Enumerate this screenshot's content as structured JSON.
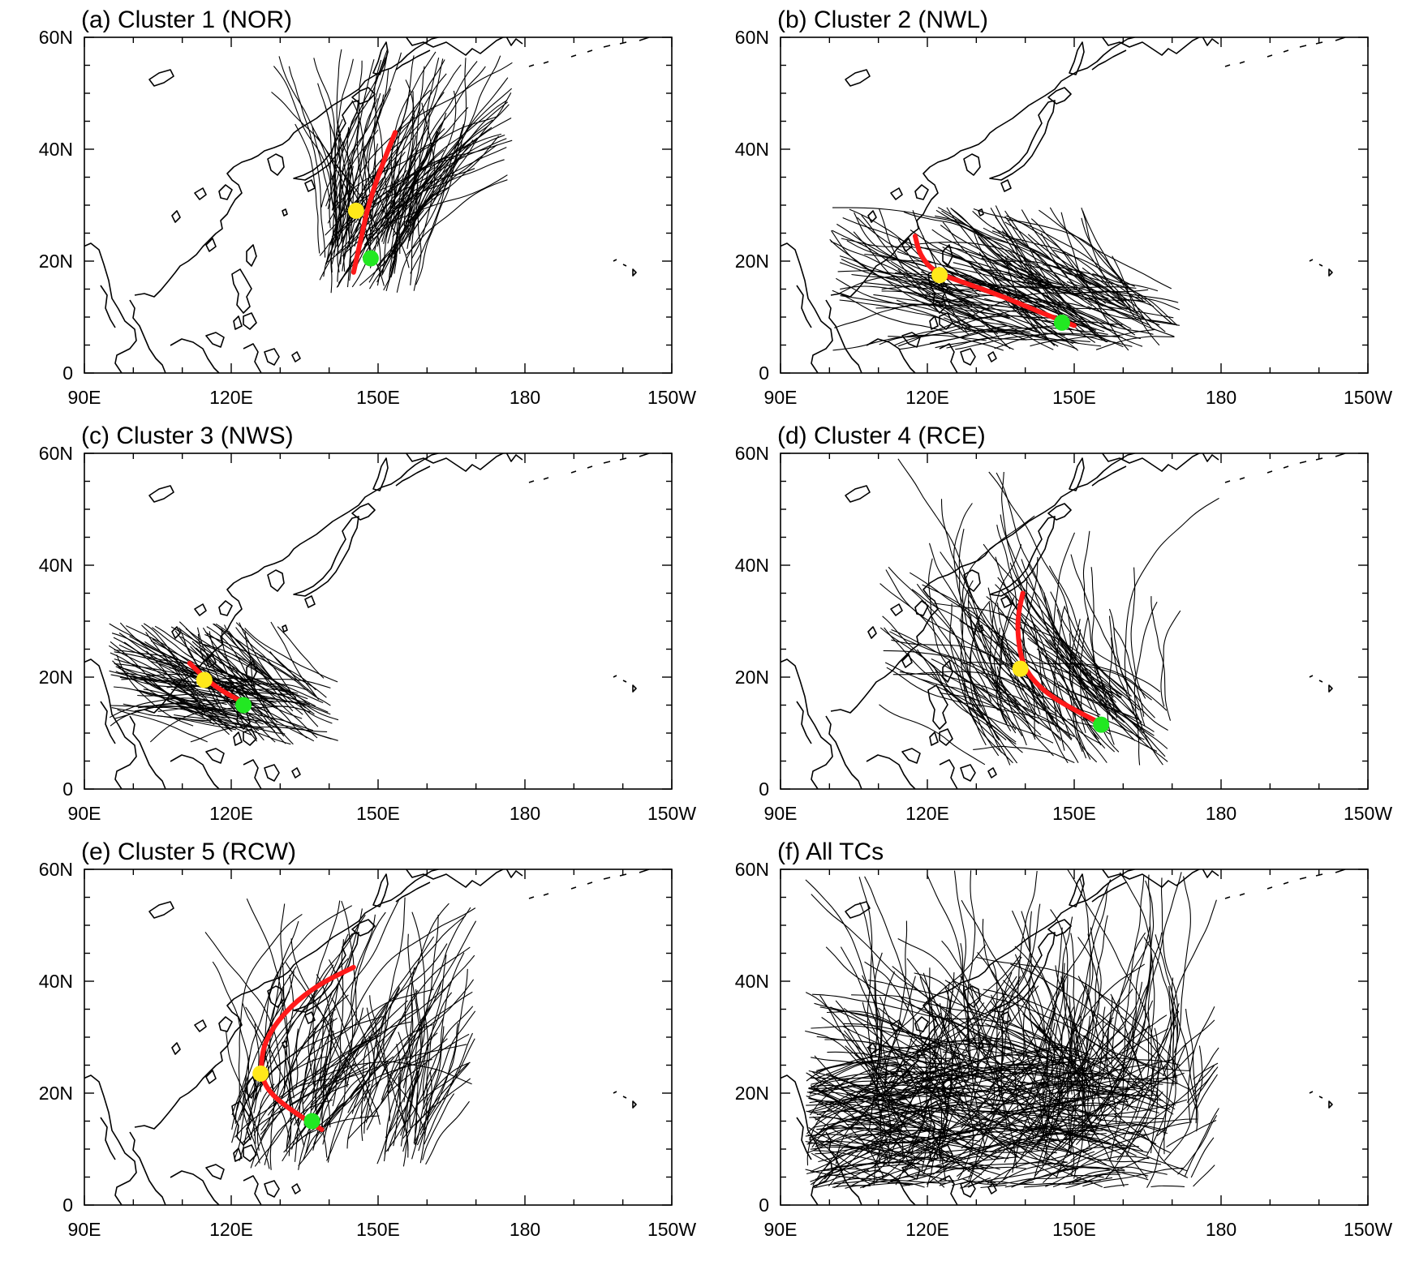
{
  "map": {
    "lon_range": [
      90,
      210
    ],
    "lat_range": [
      0,
      60
    ],
    "lon_ticks": [
      {
        "value": 90,
        "label": "90E"
      },
      {
        "value": 120,
        "label": "120E"
      },
      {
        "value": 150,
        "label": "150E"
      },
      {
        "value": 180,
        "label": "180"
      },
      {
        "value": 210,
        "label": "150W"
      }
    ],
    "lat_ticks": [
      {
        "value": 0,
        "label": "0"
      },
      {
        "value": 20,
        "label": "20N"
      },
      {
        "value": 40,
        "label": "40N"
      },
      {
        "value": 60,
        "label": "60N"
      }
    ],
    "genesis_color": "#22e822",
    "peak_color": "#ffe81a",
    "mean_track_color": "#ff1a1a",
    "track_color": "#000000"
  },
  "panels": [
    {
      "title": "(a) Cluster 1 (NOR)",
      "track_count": 130,
      "spread": {
        "lon": [
          128,
          178
        ],
        "lat": [
          16,
          58
        ],
        "origin_lon": [
          138,
          158
        ],
        "origin_lat": [
          14,
          30
        ]
      },
      "mean_track": [
        [
          145,
          18
        ],
        [
          146.5,
          24
        ],
        [
          148,
          30
        ],
        [
          150.5,
          36.5
        ],
        [
          153.5,
          43
        ]
      ],
      "genesis": [
        148.5,
        20.5
      ],
      "peak": [
        145.5,
        29
      ]
    },
    {
      "title": "(b) Cluster 2 (NWL)",
      "track_count": 150,
      "spread": {
        "lon": [
          100,
          175
        ],
        "lat": [
          4,
          30
        ],
        "origin_lon": [
          128,
          172
        ],
        "origin_lat": [
          4,
          16
        ]
      },
      "mean_track": [
        [
          150,
          8.5
        ],
        [
          144,
          10.5
        ],
        [
          136,
          13.5
        ],
        [
          128,
          16
        ],
        [
          121.5,
          18
        ],
        [
          118.5,
          21
        ],
        [
          117.5,
          24.5
        ]
      ],
      "genesis": [
        147.5,
        9
      ],
      "peak": [
        122.5,
        17.5
      ]
    },
    {
      "title": "(c) Cluster 3 (NWS)",
      "track_count": 120,
      "spread": {
        "lon": [
          95,
          142
        ],
        "lat": [
          8,
          30
        ],
        "origin_lon": [
          112,
          142
        ],
        "origin_lat": [
          8,
          20
        ]
      },
      "mean_track": [
        [
          122.5,
          15.5
        ],
        [
          119,
          17
        ],
        [
          115,
          19.5
        ],
        [
          111.5,
          22.5
        ]
      ],
      "genesis": [
        122.5,
        15
      ],
      "peak": [
        114.5,
        19.5
      ]
    },
    {
      "title": "(d) Cluster 4 (RCE)",
      "track_count": 130,
      "spread": {
        "lon": [
          110,
          180
        ],
        "lat": [
          4,
          60
        ],
        "origin_lon": [
          130,
          170
        ],
        "origin_lat": [
          4,
          18
        ]
      },
      "mean_track": [
        [
          156,
          11.5
        ],
        [
          149,
          14.5
        ],
        [
          143,
          18
        ],
        [
          139.5,
          22
        ],
        [
          138.5,
          27
        ],
        [
          138.5,
          31
        ],
        [
          139.5,
          35
        ]
      ],
      "genesis": [
        155.5,
        11.5
      ],
      "peak": [
        139,
        21.5
      ]
    },
    {
      "title": "(e) Cluster 5 (RCW)",
      "track_count": 140,
      "spread": {
        "lon": [
          110,
          170
        ],
        "lat": [
          6,
          55
        ],
        "origin_lon": [
          120,
          160
        ],
        "origin_lat": [
          6,
          22
        ]
      },
      "mean_track": [
        [
          138.5,
          13.5
        ],
        [
          131,
          17.5
        ],
        [
          126.5,
          21.5
        ],
        [
          126,
          26
        ],
        [
          127.5,
          30.5
        ],
        [
          132,
          35.5
        ],
        [
          138,
          39.5
        ],
        [
          145,
          42.5
        ]
      ],
      "genesis": [
        136.5,
        15
      ],
      "peak": [
        126,
        23.5
      ]
    },
    {
      "title": "(f) All TCs",
      "track_count": 480,
      "spread": {
        "lon": [
          95,
          180
        ],
        "lat": [
          3,
          60
        ],
        "origin_lon": [
          108,
          175
        ],
        "origin_lat": [
          3,
          28
        ]
      },
      "mean_track": [],
      "genesis": null,
      "peak": null
    }
  ]
}
